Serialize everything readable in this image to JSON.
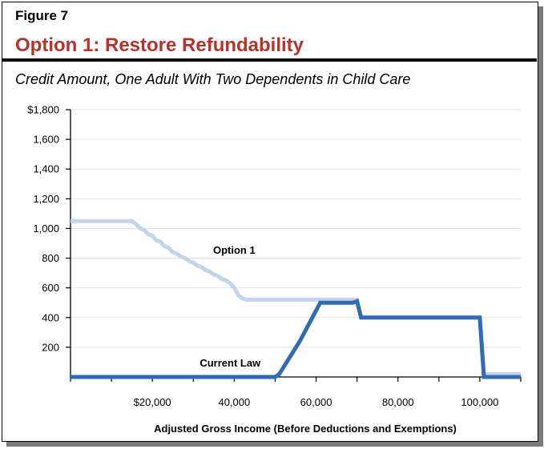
{
  "figure": {
    "label": "Figure 7",
    "title": "Option 1: Restore Refundability",
    "subtitle": "Credit Amount, One Adult With Two Dependents in Child Care",
    "title_color": "#b5332b"
  },
  "chart_data": {
    "type": "line",
    "title": "",
    "xlabel": "Adjusted Gross Income (Before Deductions and Exemptions)",
    "ylabel": "",
    "xlim": [
      0,
      110000
    ],
    "ylim": [
      0,
      1800
    ],
    "grid": true,
    "y_ticks": [
      {
        "value": 200,
        "label": "200"
      },
      {
        "value": 400,
        "label": "400"
      },
      {
        "value": 600,
        "label": "600"
      },
      {
        "value": 800,
        "label": "800"
      },
      {
        "value": 1000,
        "label": "1,000"
      },
      {
        "value": 1200,
        "label": "1,200"
      },
      {
        "value": 1400,
        "label": "1,400"
      },
      {
        "value": 1600,
        "label": "1,600"
      },
      {
        "value": 1800,
        "label": "$1,800"
      }
    ],
    "x_ticks": [
      {
        "value": 20000,
        "label": "$20,000"
      },
      {
        "value": 40000,
        "label": "40,000"
      },
      {
        "value": 60000,
        "label": "60,000"
      },
      {
        "value": 80000,
        "label": "80,000"
      },
      {
        "value": 100000,
        "label": "100,000"
      }
    ],
    "x_minor_step": 10000,
    "series": [
      {
        "name": "Option 1",
        "color": "#c5d4ea",
        "x": [
          0,
          15000,
          16000,
          17000,
          18000,
          19000,
          20000,
          21000,
          22000,
          23000,
          24000,
          25000,
          26000,
          27000,
          28000,
          29000,
          30000,
          31000,
          32000,
          33000,
          34000,
          35000,
          36000,
          37000,
          38000,
          39000,
          40000,
          41000,
          42000,
          43000,
          45000,
          70000,
          71000,
          100000,
          101000,
          110000
        ],
        "y": [
          1050,
          1050,
          1030,
          1000,
          990,
          960,
          950,
          920,
          910,
          880,
          870,
          840,
          830,
          810,
          800,
          780,
          770,
          750,
          740,
          720,
          710,
          690,
          680,
          660,
          650,
          630,
          600,
          550,
          530,
          520,
          520,
          520,
          400,
          400,
          20,
          20
        ]
      },
      {
        "name": "Current Law",
        "color": "#2e6db3",
        "x": [
          0,
          50000,
          51000,
          56000,
          61000,
          69000,
          70000,
          71000,
          100000,
          101000,
          110000
        ],
        "y": [
          0,
          0,
          20,
          240,
          500,
          500,
          510,
          400,
          400,
          0,
          0
        ]
      }
    ],
    "annotations": [
      {
        "text": "Option 1",
        "x": 40000,
        "y": 830
      },
      {
        "text": "Current Law",
        "x": 39000,
        "y": 70
      }
    ]
  }
}
